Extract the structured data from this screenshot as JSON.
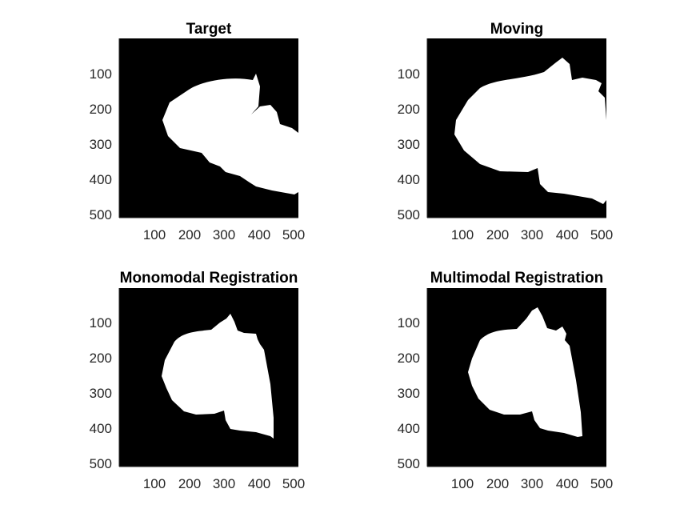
{
  "figure": {
    "panels": [
      {
        "id": "target",
        "title": "Target",
        "xticks": [
          "100",
          "200",
          "300",
          "400",
          "500"
        ],
        "yticks": [
          "100",
          "200",
          "300",
          "400",
          "500"
        ]
      },
      {
        "id": "moving",
        "title": "Moving",
        "xticks": [
          "100",
          "200",
          "300",
          "400",
          "500"
        ],
        "yticks": [
          "100",
          "200",
          "300",
          "400",
          "500"
        ]
      },
      {
        "id": "monomodal",
        "title": "Monomodal Registration",
        "xticks": [
          "100",
          "200",
          "300",
          "400",
          "500"
        ],
        "yticks": [
          "100",
          "200",
          "300",
          "400",
          "500"
        ]
      },
      {
        "id": "multimodal",
        "title": "Multimodal Registration",
        "xticks": [
          "100",
          "200",
          "300",
          "400",
          "500"
        ],
        "yticks": [
          "100",
          "200",
          "300",
          "400",
          "500"
        ]
      }
    ],
    "colors": {
      "background": "#000000",
      "mask": "#ffffff",
      "text": "#262626"
    }
  }
}
